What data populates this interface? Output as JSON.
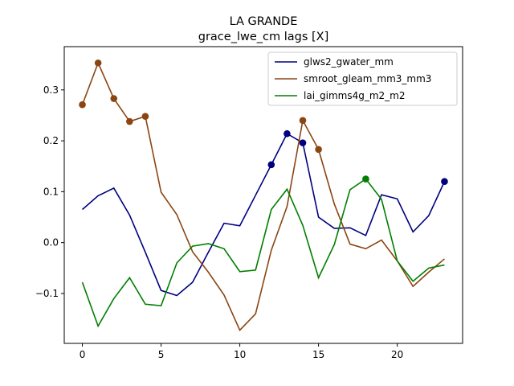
{
  "chart_data": {
    "type": "line",
    "title": "LA GRANDE",
    "subtitle": "grace_lwe_cm lags [X]",
    "xlabel": "",
    "ylabel": "",
    "xlim": [
      -1.15,
      24.15
    ],
    "ylim": [
      -0.198,
      0.385
    ],
    "xticks": [
      0,
      5,
      10,
      15,
      20
    ],
    "xtick_labels": [
      "0",
      "5",
      "10",
      "15",
      "20"
    ],
    "yticks": [
      -0.1,
      0.0,
      0.1,
      0.2,
      0.3
    ],
    "ytick_labels": [
      "−0.1",
      "0.0",
      "0.1",
      "0.2",
      "0.3"
    ],
    "grid": false,
    "legend_position": "top-right",
    "x": [
      0,
      1,
      2,
      3,
      4,
      5,
      6,
      7,
      8,
      9,
      10,
      11,
      12,
      13,
      14,
      15,
      16,
      17,
      18,
      19,
      20,
      21,
      22,
      23
    ],
    "series": [
      {
        "name": "glws2_gwater_mm",
        "color": "#00007f",
        "values": [
          0.065,
          0.092,
          0.107,
          0.054,
          -0.019,
          -0.094,
          -0.104,
          -0.078,
          -0.019,
          0.038,
          0.033,
          0.093,
          0.153,
          0.214,
          0.196,
          0.05,
          0.028,
          0.029,
          0.014,
          0.094,
          0.086,
          0.021,
          0.053,
          0.12
        ],
        "highlighted": [
          12,
          13,
          14,
          23
        ]
      },
      {
        "name": "smroot_gleam_mm3_mm3",
        "color": "#8b4513",
        "values": [
          0.271,
          0.353,
          0.283,
          0.238,
          0.248,
          0.099,
          0.055,
          -0.018,
          -0.058,
          -0.103,
          -0.172,
          -0.14,
          -0.015,
          0.071,
          0.24,
          0.183,
          0.076,
          -0.003,
          -0.012,
          0.005,
          -0.036,
          -0.086,
          -0.058,
          -0.032
        ],
        "highlighted": [
          0,
          1,
          2,
          3,
          4,
          14,
          15
        ]
      },
      {
        "name": "lai_gimms4g_m2_m2",
        "color": "#007f00",
        "values": [
          -0.078,
          -0.164,
          -0.11,
          -0.069,
          -0.121,
          -0.124,
          -0.04,
          -0.007,
          -0.002,
          -0.012,
          -0.057,
          -0.054,
          0.065,
          0.105,
          0.034,
          -0.069,
          -0.004,
          0.104,
          0.125,
          0.085,
          -0.036,
          -0.076,
          -0.05,
          -0.044
        ],
        "highlighted": [
          18
        ]
      }
    ]
  }
}
